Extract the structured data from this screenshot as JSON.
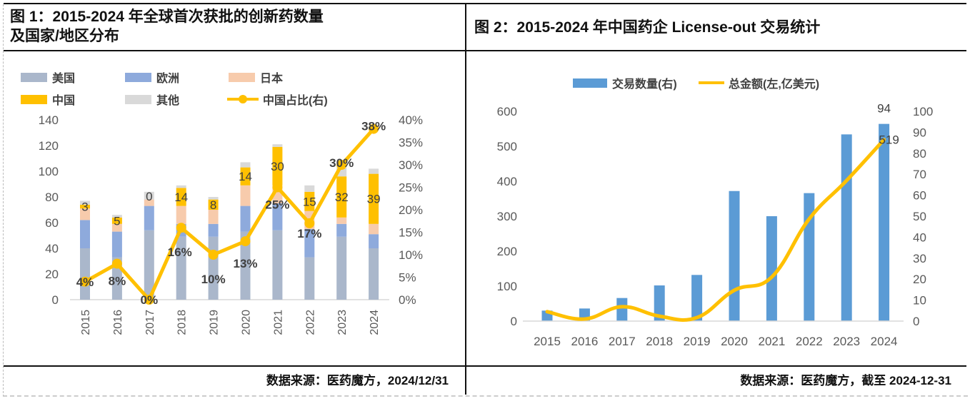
{
  "left": {
    "title_line1": "图 1：2015-2024 年全球首次获批的创新药数量",
    "title_line2": "及国家/地区分布",
    "source": "数据来源：医药魔方，2024/12/31"
  },
  "right": {
    "title": "图 2：2015-2024 年中国药企 License-out 交易统计",
    "source": "数据来源：医药魔方，截至 2024-12-31"
  },
  "chart_data": [
    {
      "type": "bar",
      "stacked": true,
      "title": "2015-2024 年全球首次获批的创新药数量及国家/地区分布",
      "categories": [
        "2015",
        "2016",
        "2017",
        "2018",
        "2019",
        "2020",
        "2021",
        "2022",
        "2023",
        "2024"
      ],
      "series": [
        {
          "name": "美国",
          "color": "#aab7cb",
          "values": [
            40,
            33,
            54,
            49,
            49,
            53,
            54,
            33,
            49,
            40
          ]
        },
        {
          "name": "欧洲",
          "color": "#8eaadc",
          "values": [
            22,
            20,
            19,
            10,
            10,
            20,
            21,
            22,
            10,
            11
          ]
        },
        {
          "name": "日本",
          "color": "#f7cbac",
          "values": [
            9,
            6,
            5,
            14,
            11,
            16,
            14,
            14,
            5,
            8
          ]
        },
        {
          "name": "中国",
          "color": "#ffc000",
          "values": [
            3,
            5,
            0,
            14,
            8,
            14,
            30,
            15,
            32,
            39
          ]
        },
        {
          "name": "其他",
          "color": "#d9d9d9",
          "values": [
            3,
            2,
            6,
            2,
            2,
            4,
            2,
            5,
            9,
            4
          ]
        }
      ],
      "line_series": {
        "name": "中国占比(右)",
        "color": "#ffc000",
        "values": [
          4,
          8,
          0,
          16,
          10,
          13,
          25,
          17,
          30,
          38
        ],
        "labels": [
          "4%",
          "8%",
          "0%",
          "16%",
          "10%",
          "13%",
          "25%",
          "17%",
          "30%",
          "38%"
        ]
      },
      "china_labels": [
        "3",
        "5",
        "0",
        "14",
        "8",
        "14",
        "30",
        "15",
        "32",
        "39"
      ],
      "y_ticks": [
        "0",
        "20",
        "40",
        "60",
        "80",
        "100",
        "120",
        "140"
      ],
      "y2_ticks": [
        "0%",
        "5%",
        "10%",
        "15%",
        "20%",
        "25%",
        "30%",
        "35%",
        "40%"
      ],
      "ylim": [
        0,
        140
      ],
      "y2lim": [
        0,
        40
      ],
      "legend_placement": "top"
    },
    {
      "type": "bar",
      "title": "2015-2024 年中国药企 License-out 交易统计",
      "categories": [
        "2015",
        "2016",
        "2017",
        "2018",
        "2019",
        "2020",
        "2021",
        "2022",
        "2023",
        "2024"
      ],
      "series": [
        {
          "name": "交易数量(右)",
          "color": "#5b9bd5",
          "axis": "right",
          "values": [
            5,
            6,
            11,
            17,
            22,
            62,
            50,
            61,
            89,
            94
          ]
        }
      ],
      "line_series": {
        "name": "总金额(左,亿美元)",
        "color": "#ffc000",
        "axis": "left",
        "values": [
          27,
          6,
          41,
          14,
          10,
          88,
          126,
          292,
          402,
          519
        ]
      },
      "data_labels": {
        "bar_last": "94",
        "line_last": "519"
      },
      "y_ticks": [
        "0",
        "100",
        "200",
        "300",
        "400",
        "500",
        "600"
      ],
      "y2_ticks": [
        "0",
        "10",
        "20",
        "30",
        "40",
        "50",
        "60",
        "70",
        "80",
        "90",
        "100"
      ],
      "ylim": [
        0,
        600
      ],
      "y2lim": [
        0,
        100
      ],
      "legend_placement": "top"
    }
  ]
}
